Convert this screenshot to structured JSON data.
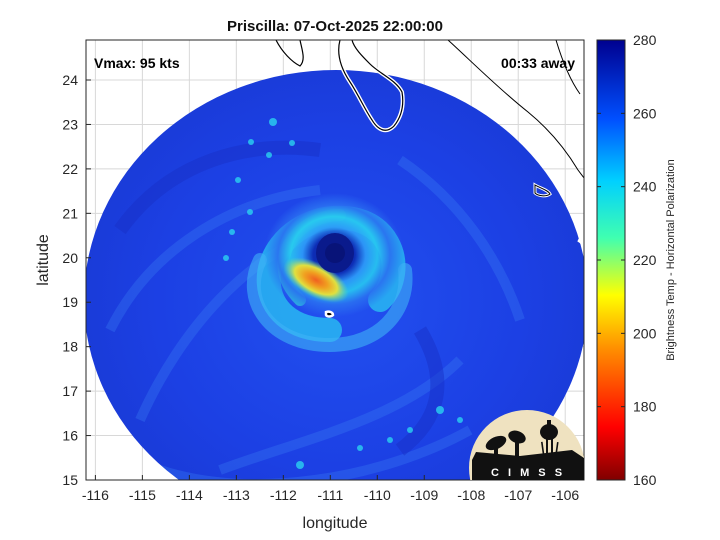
{
  "chart_data": {
    "type": "heatmap",
    "title": "Priscilla: 07-Oct-2025 22:00:00",
    "xlabel": "longitude",
    "ylabel": "latitude",
    "xlim": [
      -116.2,
      -105.6
    ],
    "ylim": [
      15,
      24.9
    ],
    "xticks": [
      -116,
      -115,
      -114,
      -113,
      -112,
      -111,
      -110,
      -109,
      -108,
      -107,
      -106
    ],
    "yticks": [
      15,
      16,
      17,
      18,
      19,
      20,
      21,
      22,
      23,
      24
    ],
    "grid": true,
    "colorbar": {
      "label": "Brightness Temp - Horizontal Polarization",
      "range": [
        160,
        280
      ],
      "ticks": [
        160,
        180,
        200,
        220,
        240,
        260,
        280
      ],
      "colormap": "jet"
    },
    "annotations": {
      "vmax": "Vmax: 95 kts",
      "time_away": "00:33 away"
    },
    "storm_center": {
      "lon": -110.95,
      "lat": 20.15
    },
    "swath_center": {
      "lon": -111.1,
      "lat": 19.5
    },
    "min_brightness_temp": 190,
    "logo_text": "C I M S S"
  },
  "colors": {
    "background_field": "#1c3bdc",
    "coastline": "#ffffff",
    "eye": "#0a1a8c",
    "warm_band": "#f0a020"
  }
}
